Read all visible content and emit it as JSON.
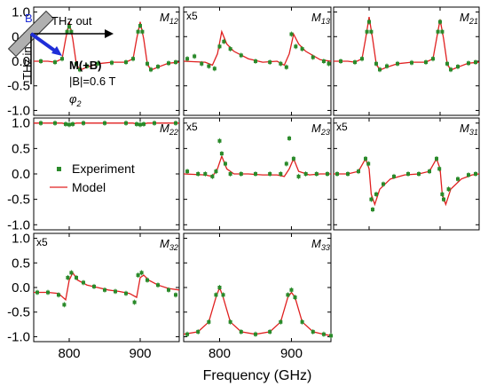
{
  "chart_data": {
    "type": "scatter",
    "xlabel": "Frequency (GHz)",
    "xlim": [
      750,
      955
    ],
    "x_ticks": [
      "800",
      "900"
    ],
    "y_ticks": [
      "1.0",
      "0.5",
      "0.0",
      "-0.5",
      "-1.0"
    ],
    "ylim": [
      -1.1,
      1.1
    ],
    "grid": false,
    "legend": {
      "placement": "inside M22 panel, below trace",
      "entries": [
        {
          "name": "Experiment",
          "marker": "square",
          "color": "#2a8a2a"
        },
        {
          "name": "Model",
          "marker": "line",
          "color": "#e02020"
        }
      ]
    },
    "setup": {
      "beam_in_label": "THz in",
      "beam_out_label": "THz out",
      "field_label": "B",
      "matrix_label": "M(+B)",
      "field_strength": "|B|=0.6 T",
      "angle_label": "φ",
      "angle_sub": "2"
    },
    "series_colors": {
      "experiment": "#2a8a2a",
      "model": "#e02020"
    },
    "panels": [
      {
        "id": "M12",
        "label": "M",
        "sub": "12",
        "scale_note": "",
        "model": [
          [
            750,
            0.0
          ],
          [
            770,
            0.0
          ],
          [
            780,
            -0.02
          ],
          [
            790,
            0.05
          ],
          [
            795,
            0.45
          ],
          [
            800,
            0.8
          ],
          [
            805,
            0.45
          ],
          [
            810,
            -0.05
          ],
          [
            815,
            -0.18
          ],
          [
            825,
            -0.12
          ],
          [
            840,
            -0.05
          ],
          [
            860,
            -0.02
          ],
          [
            880,
            -0.02
          ],
          [
            890,
            0.05
          ],
          [
            895,
            0.45
          ],
          [
            900,
            0.8
          ],
          [
            905,
            0.45
          ],
          [
            910,
            -0.05
          ],
          [
            915,
            -0.18
          ],
          [
            925,
            -0.12
          ],
          [
            940,
            -0.04
          ],
          [
            955,
            -0.02
          ]
        ],
        "experiment": [
          [
            760,
            0.0
          ],
          [
            780,
            -0.02
          ],
          [
            790,
            0.05
          ],
          [
            797,
            0.6
          ],
          [
            800,
            0.7
          ],
          [
            803,
            0.6
          ],
          [
            810,
            -0.05
          ],
          [
            815,
            -0.17
          ],
          [
            825,
            -0.1
          ],
          [
            840,
            -0.05
          ],
          [
            860,
            -0.03
          ],
          [
            880,
            -0.02
          ],
          [
            890,
            0.05
          ],
          [
            897,
            0.6
          ],
          [
            900,
            0.72
          ],
          [
            903,
            0.6
          ],
          [
            910,
            -0.05
          ],
          [
            915,
            -0.17
          ],
          [
            925,
            -0.11
          ],
          [
            940,
            -0.04
          ],
          [
            950,
            -0.02
          ]
        ]
      },
      {
        "id": "M13",
        "label": "M",
        "sub": "13",
        "scale_note": "x5",
        "model": [
          [
            750,
            0.0
          ],
          [
            780,
            -0.02
          ],
          [
            790,
            -0.08
          ],
          [
            797,
            0.15
          ],
          [
            803,
            0.6
          ],
          [
            810,
            0.35
          ],
          [
            820,
            0.2
          ],
          [
            840,
            0.05
          ],
          [
            860,
            -0.02
          ],
          [
            880,
            0.0
          ],
          [
            890,
            -0.08
          ],
          [
            897,
            0.15
          ],
          [
            903,
            0.55
          ],
          [
            910,
            0.35
          ],
          [
            920,
            0.2
          ],
          [
            940,
            0.03
          ],
          [
            955,
            0.0
          ]
        ],
        "experiment": [
          [
            755,
            0.05
          ],
          [
            765,
            0.1
          ],
          [
            775,
            -0.05
          ],
          [
            785,
            -0.1
          ],
          [
            793,
            -0.15
          ],
          [
            800,
            0.3
          ],
          [
            806,
            0.4
          ],
          [
            815,
            0.25
          ],
          [
            830,
            0.12
          ],
          [
            850,
            0.0
          ],
          [
            870,
            -0.02
          ],
          [
            885,
            -0.05
          ],
          [
            893,
            -0.12
          ],
          [
            900,
            0.55
          ],
          [
            906,
            0.3
          ],
          [
            915,
            0.25
          ],
          [
            930,
            0.08
          ],
          [
            945,
            0.0
          ],
          [
            952,
            -0.05
          ]
        ]
      },
      {
        "id": "M21",
        "label": "M",
        "sub": "21",
        "scale_note": "",
        "model": [
          [
            750,
            0.0
          ],
          [
            770,
            0.0
          ],
          [
            780,
            -0.02
          ],
          [
            790,
            0.05
          ],
          [
            795,
            0.45
          ],
          [
            800,
            0.9
          ],
          [
            805,
            0.45
          ],
          [
            810,
            -0.05
          ],
          [
            815,
            -0.18
          ],
          [
            825,
            -0.12
          ],
          [
            840,
            -0.05
          ],
          [
            860,
            -0.02
          ],
          [
            880,
            -0.02
          ],
          [
            890,
            0.05
          ],
          [
            895,
            0.45
          ],
          [
            900,
            0.85
          ],
          [
            905,
            0.45
          ],
          [
            910,
            -0.05
          ],
          [
            915,
            -0.18
          ],
          [
            925,
            -0.12
          ],
          [
            940,
            -0.04
          ],
          [
            955,
            -0.02
          ]
        ],
        "experiment": [
          [
            760,
            0.0
          ],
          [
            780,
            -0.02
          ],
          [
            790,
            0.05
          ],
          [
            797,
            0.6
          ],
          [
            800,
            0.8
          ],
          [
            803,
            0.6
          ],
          [
            810,
            -0.05
          ],
          [
            815,
            -0.17
          ],
          [
            825,
            -0.1
          ],
          [
            840,
            -0.05
          ],
          [
            860,
            -0.03
          ],
          [
            880,
            -0.02
          ],
          [
            890,
            0.05
          ],
          [
            897,
            0.6
          ],
          [
            900,
            0.8
          ],
          [
            903,
            0.6
          ],
          [
            910,
            -0.05
          ],
          [
            915,
            -0.17
          ],
          [
            925,
            -0.11
          ],
          [
            940,
            -0.04
          ],
          [
            950,
            -0.02
          ]
        ]
      },
      {
        "id": "M22",
        "label": "M",
        "sub": "22",
        "scale_note": "",
        "model": [
          [
            750,
            1.0
          ],
          [
            790,
            1.0
          ],
          [
            795,
            0.98
          ],
          [
            800,
            0.95
          ],
          [
            805,
            0.98
          ],
          [
            810,
            1.0
          ],
          [
            890,
            1.0
          ],
          [
            895,
            0.98
          ],
          [
            900,
            0.95
          ],
          [
            905,
            0.98
          ],
          [
            910,
            1.0
          ],
          [
            955,
            1.0
          ]
        ],
        "experiment": [
          [
            760,
            1.0
          ],
          [
            780,
            1.0
          ],
          [
            795,
            0.98
          ],
          [
            800,
            0.97
          ],
          [
            805,
            0.98
          ],
          [
            820,
            1.0
          ],
          [
            850,
            1.0
          ],
          [
            880,
            1.0
          ],
          [
            895,
            0.98
          ],
          [
            900,
            0.97
          ],
          [
            905,
            0.98
          ],
          [
            920,
            1.0
          ],
          [
            950,
            1.0
          ]
        ]
      },
      {
        "id": "M23",
        "label": "M",
        "sub": "23",
        "scale_note": "x5",
        "model": [
          [
            750,
            0.0
          ],
          [
            780,
            -0.02
          ],
          [
            790,
            -0.05
          ],
          [
            797,
            0.1
          ],
          [
            803,
            0.35
          ],
          [
            810,
            0.1
          ],
          [
            820,
            0.0
          ],
          [
            840,
            0.0
          ],
          [
            860,
            -0.02
          ],
          [
            880,
            -0.02
          ],
          [
            890,
            -0.05
          ],
          [
            897,
            0.1
          ],
          [
            903,
            0.3
          ],
          [
            910,
            0.05
          ],
          [
            925,
            -0.02
          ],
          [
            940,
            0.0
          ],
          [
            955,
            0.0
          ]
        ],
        "experiment": [
          [
            755,
            0.05
          ],
          [
            770,
            0.0
          ],
          [
            780,
            0.0
          ],
          [
            790,
            -0.05
          ],
          [
            795,
            0.05
          ],
          [
            800,
            0.65
          ],
          [
            803,
            0.4
          ],
          [
            808,
            0.2
          ],
          [
            815,
            0.0
          ],
          [
            830,
            0.0
          ],
          [
            850,
            0.0
          ],
          [
            870,
            0.0
          ],
          [
            885,
            0.0
          ],
          [
            893,
            0.2
          ],
          [
            897,
            0.7
          ],
          [
            903,
            0.3
          ],
          [
            910,
            -0.05
          ],
          [
            920,
            0.0
          ],
          [
            935,
            0.0
          ],
          [
            950,
            0.0
          ]
        ]
      },
      {
        "id": "M31",
        "label": "M",
        "sub": "31",
        "scale_note": "x5",
        "model": [
          [
            750,
            0.0
          ],
          [
            770,
            0.0
          ],
          [
            785,
            0.05
          ],
          [
            795,
            0.3
          ],
          [
            800,
            0.1
          ],
          [
            803,
            -0.4
          ],
          [
            808,
            -0.6
          ],
          [
            815,
            -0.3
          ],
          [
            830,
            -0.1
          ],
          [
            850,
            -0.02
          ],
          [
            870,
            0.0
          ],
          [
            885,
            0.05
          ],
          [
            895,
            0.3
          ],
          [
            900,
            0.1
          ],
          [
            903,
            -0.4
          ],
          [
            908,
            -0.6
          ],
          [
            915,
            -0.3
          ],
          [
            930,
            -0.1
          ],
          [
            945,
            -0.02
          ],
          [
            955,
            0.0
          ]
        ],
        "experiment": [
          [
            755,
            0.0
          ],
          [
            770,
            0.0
          ],
          [
            785,
            0.05
          ],
          [
            795,
            0.3
          ],
          [
            799,
            0.2
          ],
          [
            803,
            -0.5
          ],
          [
            805,
            -0.7
          ],
          [
            810,
            -0.4
          ],
          [
            820,
            -0.2
          ],
          [
            835,
            -0.05
          ],
          [
            855,
            0.0
          ],
          [
            870,
            0.0
          ],
          [
            885,
            0.05
          ],
          [
            895,
            0.3
          ],
          [
            899,
            0.1
          ],
          [
            903,
            -0.4
          ],
          [
            905,
            -0.5
          ],
          [
            912,
            -0.3
          ],
          [
            925,
            -0.1
          ],
          [
            940,
            -0.02
          ],
          [
            950,
            0.0
          ]
        ]
      },
      {
        "id": "M32",
        "label": "M",
        "sub": "32",
        "scale_note": "x5",
        "model": [
          [
            750,
            -0.1
          ],
          [
            770,
            -0.1
          ],
          [
            785,
            -0.12
          ],
          [
            795,
            -0.25
          ],
          [
            800,
            0.15
          ],
          [
            805,
            0.3
          ],
          [
            812,
            0.15
          ],
          [
            825,
            0.05
          ],
          [
            840,
            0.0
          ],
          [
            855,
            -0.05
          ],
          [
            870,
            -0.08
          ],
          [
            885,
            -0.12
          ],
          [
            895,
            -0.2
          ],
          [
            900,
            0.2
          ],
          [
            905,
            0.25
          ],
          [
            912,
            0.15
          ],
          [
            925,
            0.05
          ],
          [
            940,
            -0.02
          ],
          [
            955,
            -0.05
          ]
        ],
        "experiment": [
          [
            755,
            -0.1
          ],
          [
            770,
            -0.1
          ],
          [
            785,
            -0.15
          ],
          [
            793,
            -0.35
          ],
          [
            798,
            0.2
          ],
          [
            803,
            0.3
          ],
          [
            810,
            0.2
          ],
          [
            820,
            0.1
          ],
          [
            835,
            0.02
          ],
          [
            850,
            -0.05
          ],
          [
            865,
            -0.08
          ],
          [
            880,
            -0.12
          ],
          [
            892,
            -0.3
          ],
          [
            897,
            0.25
          ],
          [
            902,
            0.3
          ],
          [
            910,
            0.15
          ],
          [
            925,
            0.05
          ],
          [
            940,
            -0.05
          ],
          [
            950,
            -0.15
          ]
        ]
      },
      {
        "id": "M33",
        "label": "M",
        "sub": "33",
        "scale_note": "",
        "model": [
          [
            750,
            -0.95
          ],
          [
            770,
            -0.9
          ],
          [
            785,
            -0.7
          ],
          [
            795,
            -0.2
          ],
          [
            800,
            0.0
          ],
          [
            805,
            -0.2
          ],
          [
            815,
            -0.7
          ],
          [
            830,
            -0.9
          ],
          [
            850,
            -0.95
          ],
          [
            870,
            -0.9
          ],
          [
            885,
            -0.7
          ],
          [
            895,
            -0.2
          ],
          [
            900,
            -0.1
          ],
          [
            905,
            -0.2
          ],
          [
            915,
            -0.7
          ],
          [
            930,
            -0.9
          ],
          [
            945,
            -0.95
          ],
          [
            955,
            -0.98
          ]
        ],
        "experiment": [
          [
            755,
            -0.95
          ],
          [
            770,
            -0.9
          ],
          [
            785,
            -0.7
          ],
          [
            795,
            -0.15
          ],
          [
            800,
            0.0
          ],
          [
            805,
            -0.15
          ],
          [
            815,
            -0.7
          ],
          [
            830,
            -0.9
          ],
          [
            850,
            -0.95
          ],
          [
            870,
            -0.9
          ],
          [
            885,
            -0.7
          ],
          [
            895,
            -0.15
          ],
          [
            900,
            -0.05
          ],
          [
            905,
            -0.2
          ],
          [
            915,
            -0.7
          ],
          [
            930,
            -0.9
          ],
          [
            945,
            -0.95
          ],
          [
            955,
            -0.98
          ]
        ]
      }
    ]
  }
}
